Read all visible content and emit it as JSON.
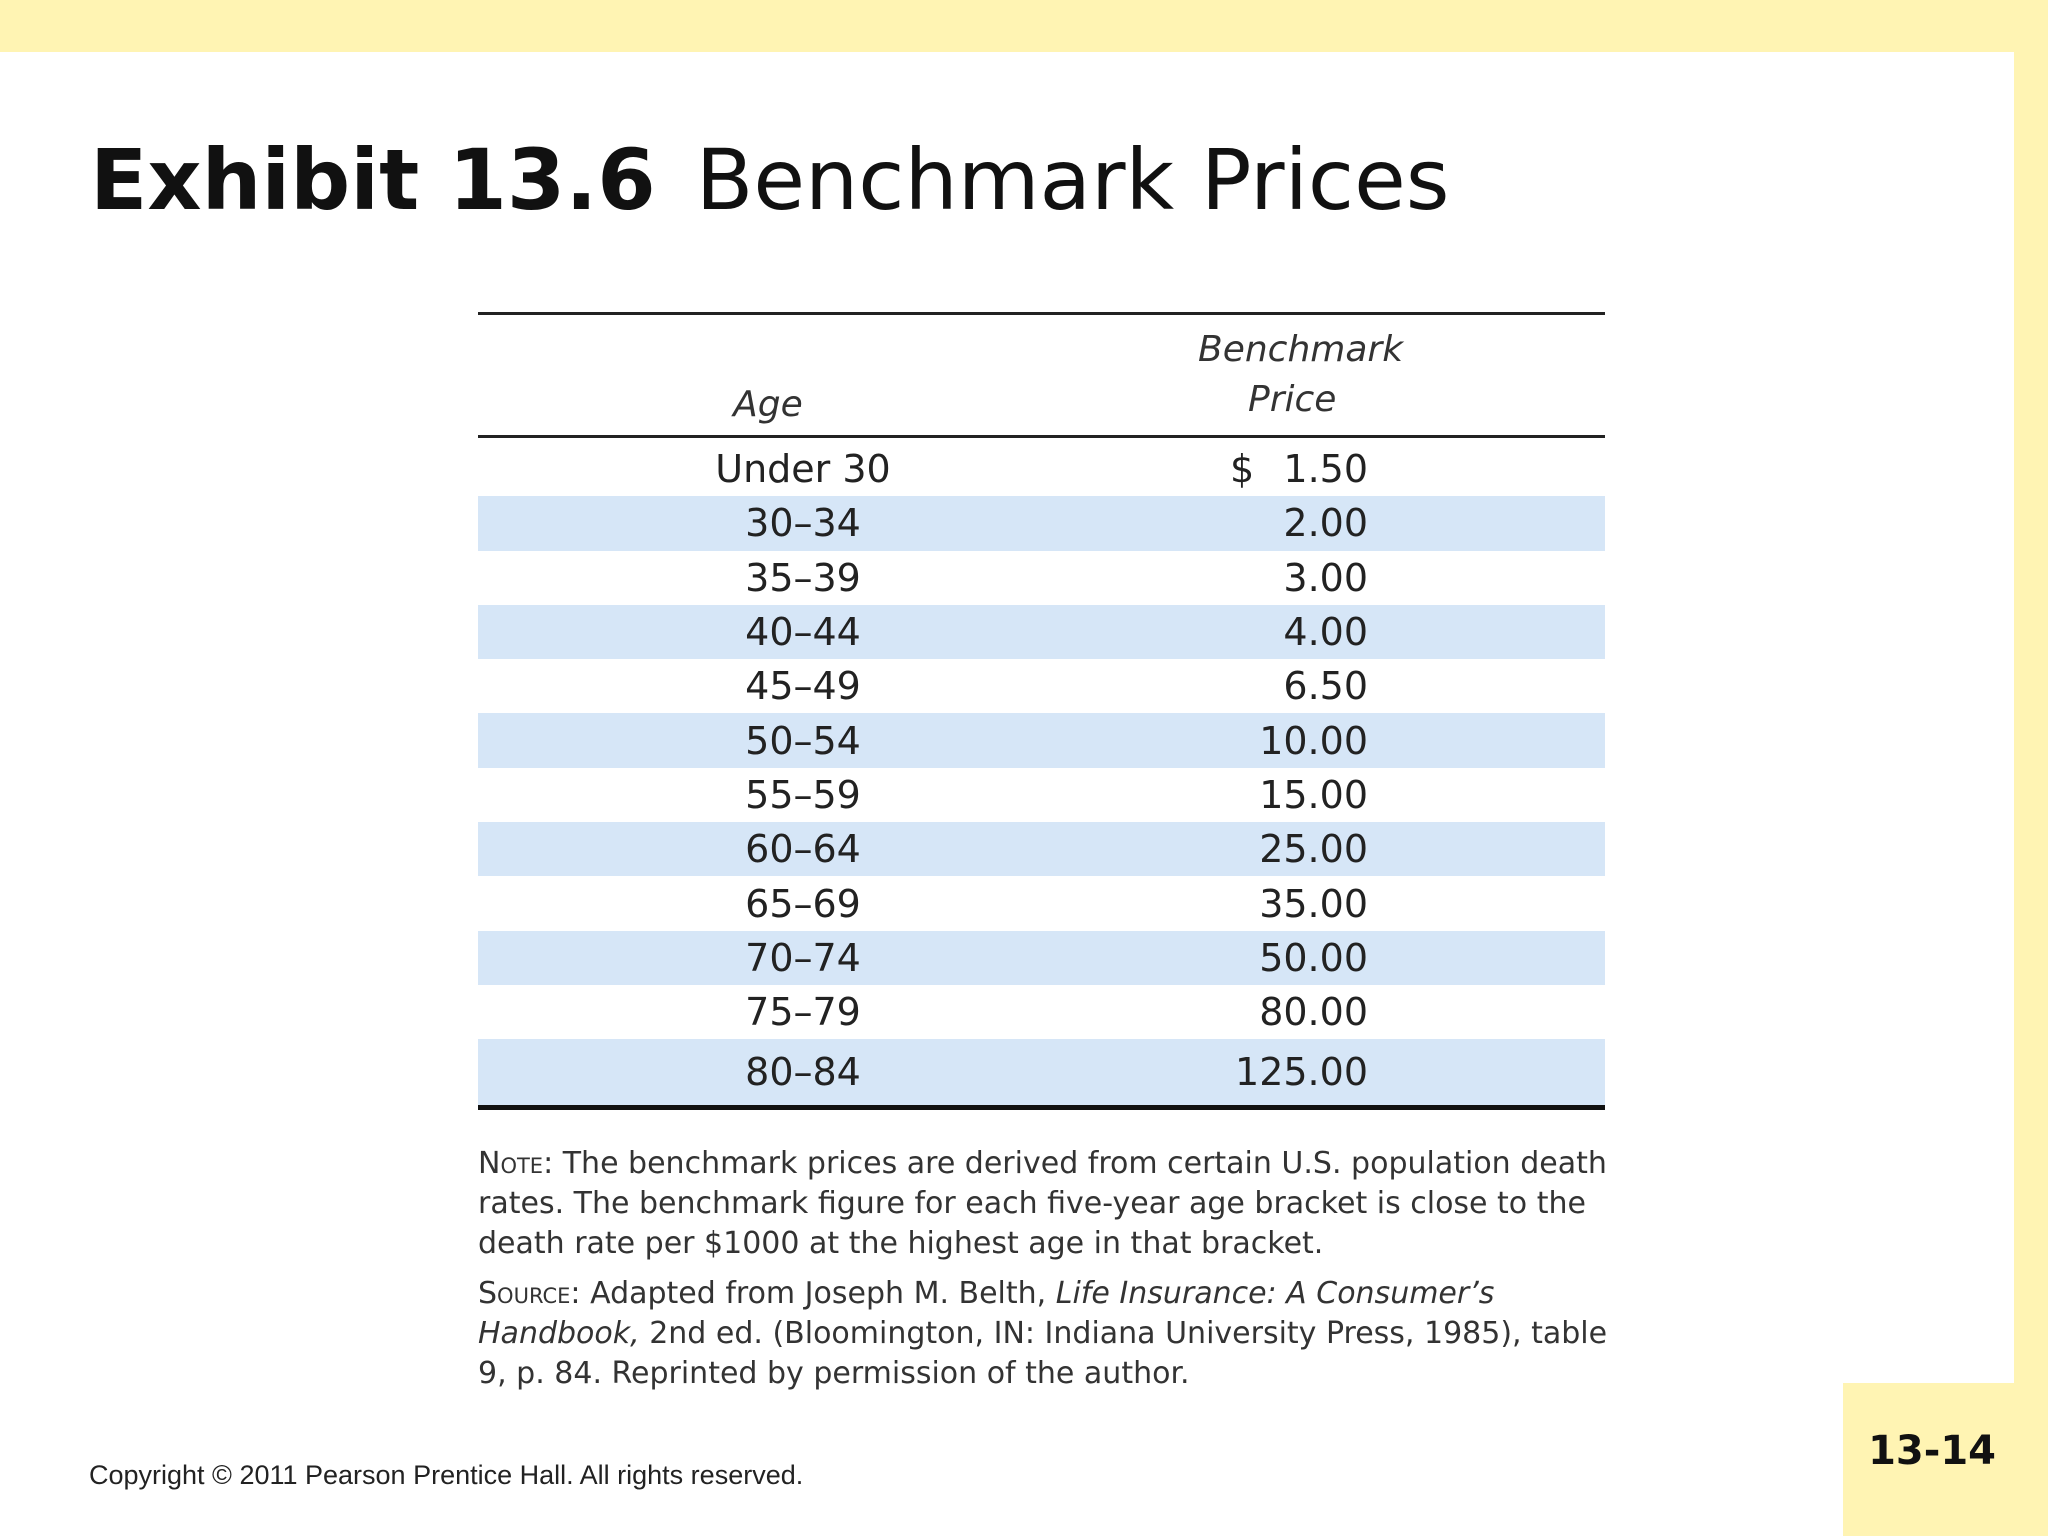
{
  "slide": {
    "title_number": "Exhibit 13.6",
    "title_name": "Benchmark Prices",
    "page_number": "13-14",
    "copyright": "Copyright © 2011 Pearson Prentice Hall. All rights reserved."
  },
  "table": {
    "header_age": "Age",
    "header_price_line1": "Benchmark",
    "header_price_line2": "Price",
    "rows": [
      {
        "age": "Under 30",
        "currency": "$",
        "price": "1.50"
      },
      {
        "age": "30–34",
        "currency": "",
        "price": "2.00"
      },
      {
        "age": "35–39",
        "currency": "",
        "price": "3.00"
      },
      {
        "age": "40–44",
        "currency": "",
        "price": "4.00"
      },
      {
        "age": "45–49",
        "currency": "",
        "price": "6.50"
      },
      {
        "age": "50–54",
        "currency": "",
        "price": "10.00"
      },
      {
        "age": "55–59",
        "currency": "",
        "price": "15.00"
      },
      {
        "age": "60–64",
        "currency": "",
        "price": "25.00"
      },
      {
        "age": "65–69",
        "currency": "",
        "price": "35.00"
      },
      {
        "age": "70–74",
        "currency": "",
        "price": "50.00"
      },
      {
        "age": "75–79",
        "currency": "",
        "price": "80.00"
      },
      {
        "age": "80–84",
        "currency": "",
        "price": "125.00"
      }
    ]
  },
  "notes": {
    "note_label": "Note:",
    "note_text": " The benchmark prices are derived from certain U.S. population death rates. The benchmark figure for each five-year age bracket is close to the death rate per $1000 at the highest age in that bracket.",
    "source_label": "Source:",
    "source_text_1": " Adapted from Joseph M. Belth, ",
    "source_title": "Life Insurance: A Consumer’s Handbook,",
    "source_text_2": " 2nd ed. (Bloomington, IN: Indiana University Press, 1985), table 9, p. 84. Reprinted by permission of the author."
  },
  "colors": {
    "band": "#fff4b3",
    "row_shade": "#d6e6f7"
  }
}
